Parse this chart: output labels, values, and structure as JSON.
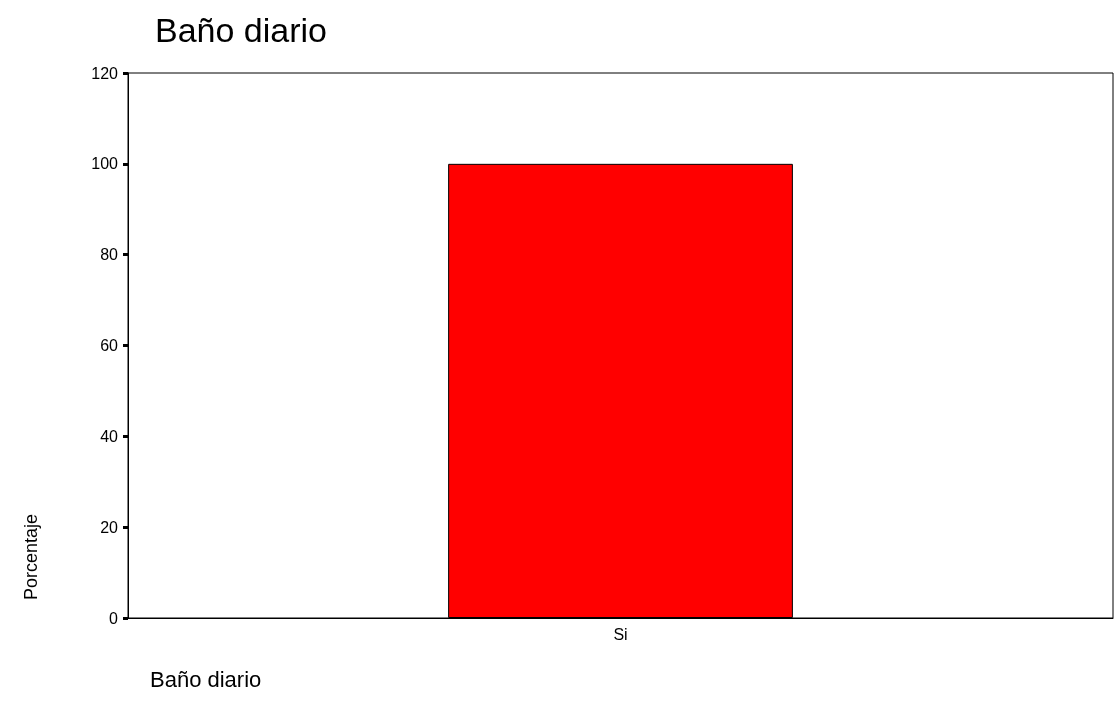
{
  "chart_data": {
    "type": "bar",
    "title": "Baño diario",
    "xlabel": "Baño diario",
    "ylabel": "Porcentaje",
    "categories": [
      "Si"
    ],
    "values": [
      100
    ],
    "color": "#ff0000",
    "ylim": [
      0,
      120
    ],
    "yticks": [
      0,
      20,
      40,
      60,
      80,
      100,
      120
    ],
    "grid": false
  }
}
